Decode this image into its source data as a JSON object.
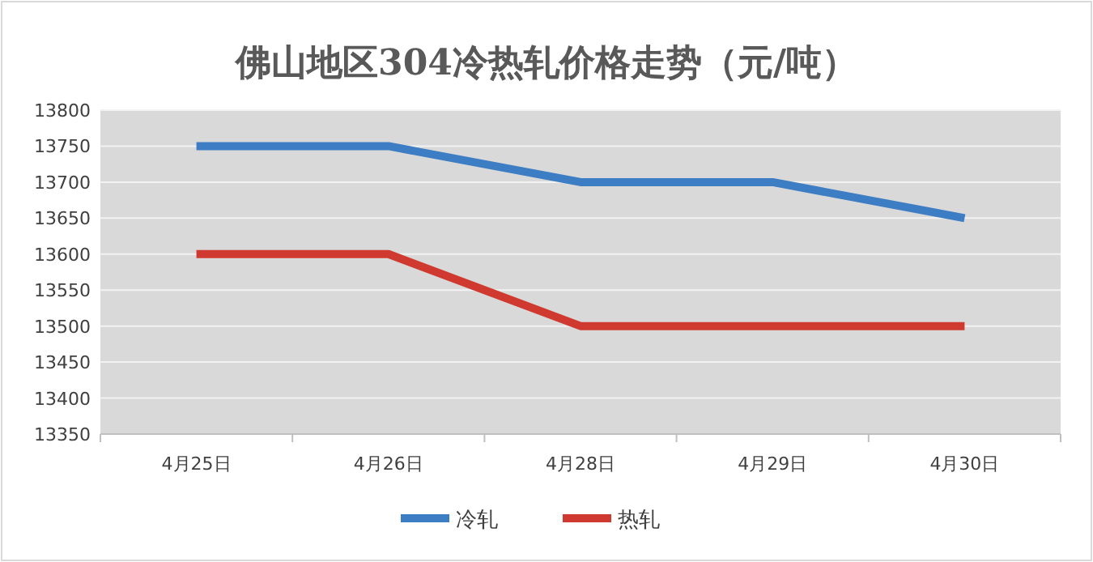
{
  "chart_data": {
    "type": "line",
    "title": "佛山地区304冷热轧价格走势（元/吨）",
    "categories": [
      "4月25日",
      "4月26日",
      "4月28日",
      "4月29日",
      "4月30日"
    ],
    "series": [
      {
        "name": "冷轧",
        "color": "#3c7dc4",
        "values": [
          13750,
          13750,
          13700,
          13700,
          13650
        ]
      },
      {
        "name": "热轧",
        "color": "#d0392f",
        "values": [
          13600,
          13600,
          13500,
          13500,
          13500
        ]
      }
    ],
    "ylim": [
      13350,
      13800
    ],
    "yticks": [
      13350,
      13400,
      13450,
      13500,
      13550,
      13600,
      13650,
      13700,
      13750,
      13800
    ],
    "grid": "y",
    "legend": "bottom",
    "marker": "none",
    "line_style": "solid"
  }
}
